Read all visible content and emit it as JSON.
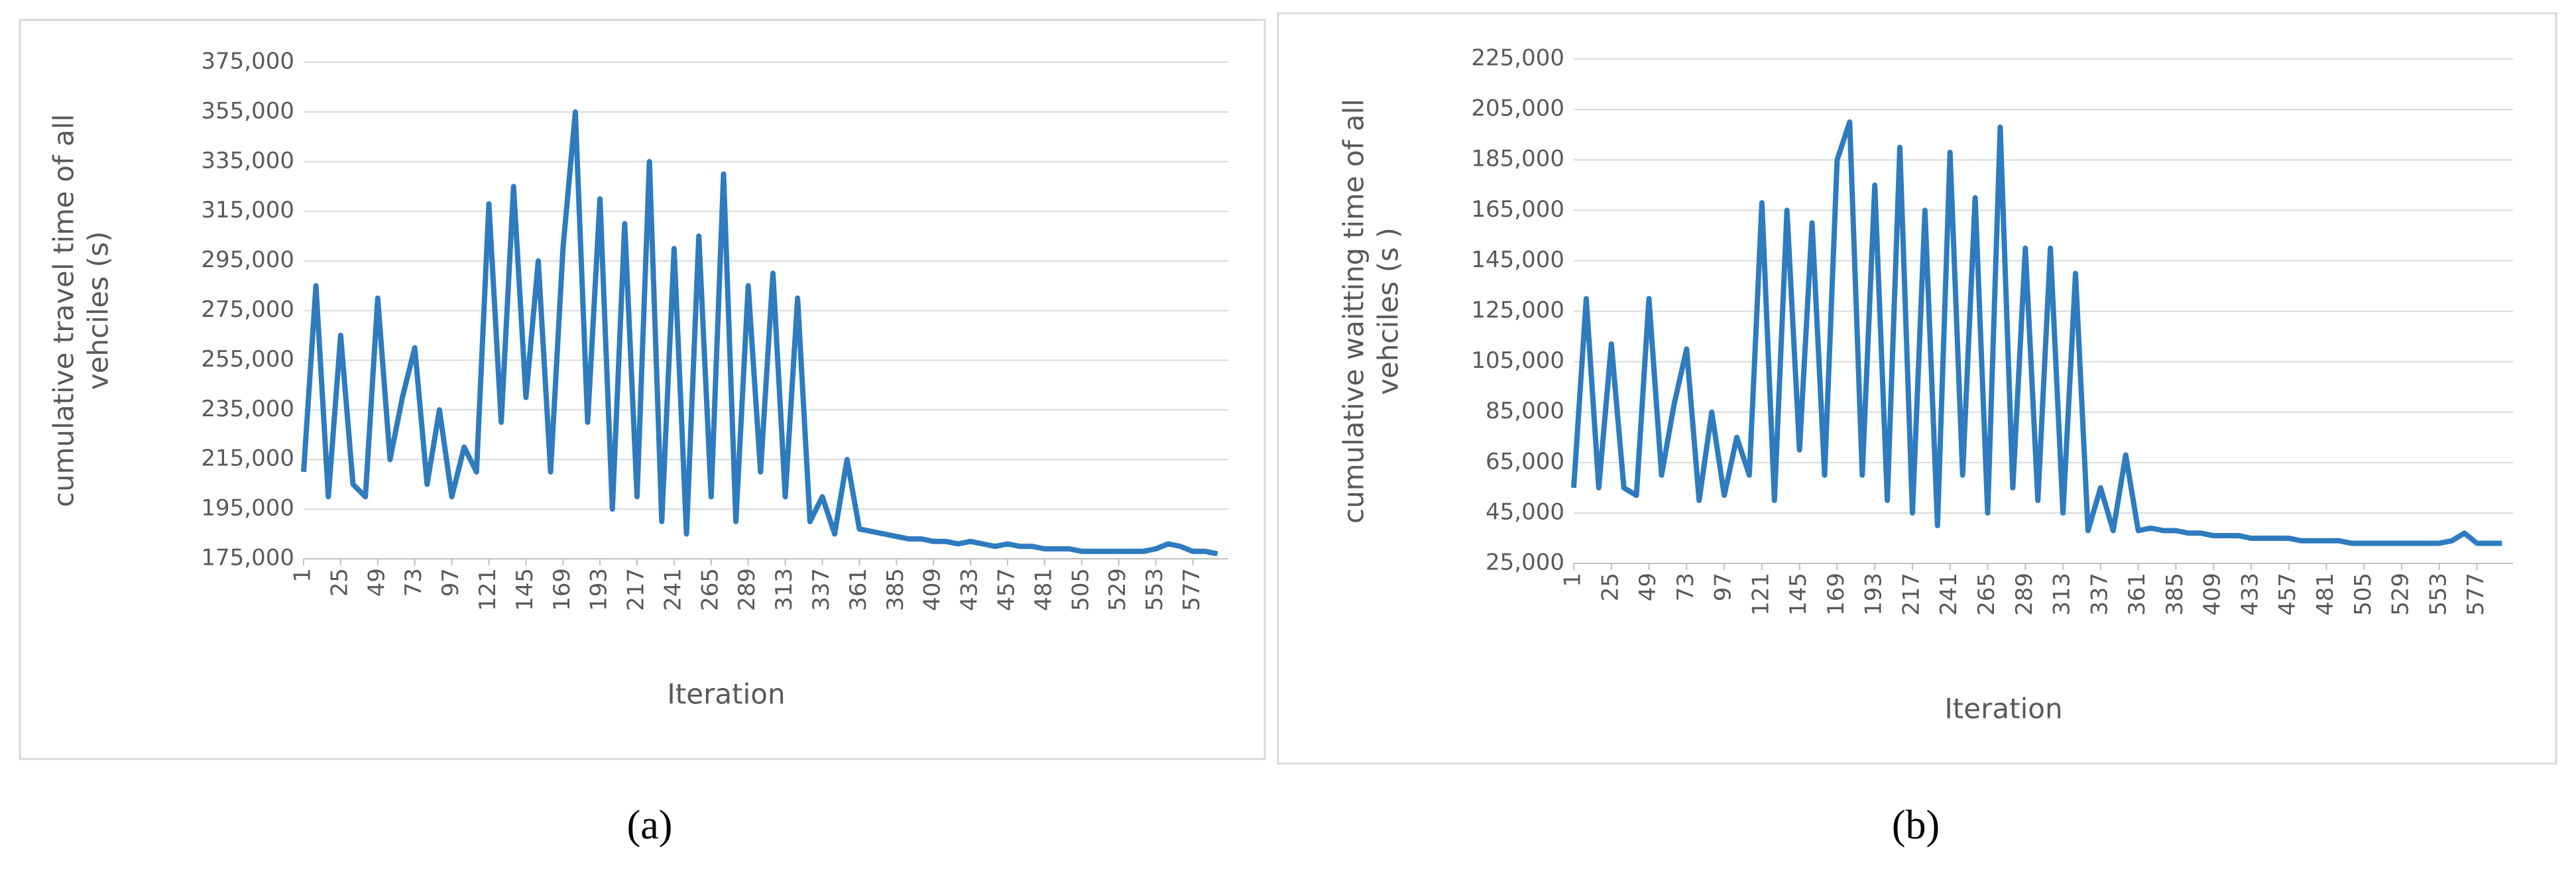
{
  "chart_data": [
    {
      "type": "line",
      "ylabel": [
        "cumulative travel time of all",
        "vehciles (s)"
      ],
      "xlabel": "Iteration",
      "caption": "(a)",
      "grid": true,
      "xlim": [
        1,
        600
      ],
      "xticks": [
        1,
        25,
        49,
        73,
        97,
        121,
        145,
        169,
        193,
        217,
        241,
        265,
        289,
        313,
        337,
        361,
        385,
        409,
        433,
        457,
        481,
        505,
        529,
        553,
        577
      ],
      "ylim": [
        175000,
        375000
      ],
      "yticks": [
        {
          "value": 175000,
          "label": "175,000"
        },
        {
          "value": 195000,
          "label": "195,000"
        },
        {
          "value": 215000,
          "label": "215,000"
        },
        {
          "value": 235000,
          "label": "235,000"
        },
        {
          "value": 255000,
          "label": "255,000"
        },
        {
          "value": 275000,
          "label": "275,000"
        },
        {
          "value": 295000,
          "label": "295,000"
        },
        {
          "value": 315000,
          "label": "315,000"
        },
        {
          "value": 335000,
          "label": "335,000"
        },
        {
          "value": 355000,
          "label": "355,000"
        },
        {
          "value": 375000,
          "label": "375,000"
        }
      ],
      "x": [
        1,
        9,
        17,
        25,
        33,
        41,
        49,
        57,
        65,
        73,
        81,
        89,
        97,
        105,
        113,
        121,
        129,
        137,
        145,
        153,
        161,
        169,
        177,
        185,
        193,
        201,
        209,
        217,
        225,
        233,
        241,
        249,
        257,
        265,
        273,
        281,
        289,
        297,
        305,
        313,
        321,
        329,
        337,
        345,
        353,
        361,
        369,
        377,
        385,
        393,
        401,
        409,
        417,
        425,
        433,
        441,
        449,
        457,
        465,
        473,
        481,
        489,
        497,
        505,
        513,
        521,
        529,
        537,
        545,
        553,
        561,
        569,
        577,
        585,
        593
      ],
      "series": [
        {
          "color": "#2e7bbf",
          "values": [
            210000,
            285000,
            200000,
            265000,
            205000,
            200000,
            280000,
            215000,
            240000,
            260000,
            205000,
            235000,
            200000,
            220000,
            210000,
            318000,
            230000,
            325000,
            240000,
            295000,
            210000,
            300000,
            355000,
            230000,
            320000,
            195000,
            310000,
            200000,
            335000,
            190000,
            300000,
            185000,
            305000,
            200000,
            330000,
            190000,
            285000,
            210000,
            290000,
            200000,
            280000,
            190000,
            200000,
            185000,
            215000,
            187000,
            186000,
            185000,
            184000,
            183000,
            183000,
            182000,
            182000,
            181000,
            182000,
            181000,
            180000,
            181000,
            180000,
            180000,
            179000,
            179000,
            179000,
            178000,
            178000,
            178000,
            178000,
            178000,
            178000,
            179000,
            181000,
            180000,
            178000,
            178000,
            177000
          ]
        }
      ]
    },
    {
      "type": "line",
      "ylabel": [
        "cumulative waitting time of all",
        "vehciles (s )"
      ],
      "xlabel": "Iteration",
      "caption": "(b)",
      "grid": true,
      "xlim": [
        1,
        600
      ],
      "xticks": [
        1,
        25,
        49,
        73,
        97,
        121,
        145,
        169,
        193,
        217,
        241,
        265,
        289,
        313,
        337,
        361,
        385,
        409,
        433,
        457,
        481,
        505,
        529,
        553,
        577
      ],
      "ylim": [
        25000,
        225000
      ],
      "yticks": [
        {
          "value": 25000,
          "label": "25,000"
        },
        {
          "value": 45000,
          "label": "45,000"
        },
        {
          "value": 65000,
          "label": "65,000"
        },
        {
          "value": 85000,
          "label": "85,000"
        },
        {
          "value": 105000,
          "label": "105,000"
        },
        {
          "value": 125000,
          "label": "125,000"
        },
        {
          "value": 145000,
          "label": "145,000"
        },
        {
          "value": 165000,
          "label": "165,000"
        },
        {
          "value": 185000,
          "label": "185,000"
        },
        {
          "value": 205000,
          "label": "205,000"
        },
        {
          "value": 225000,
          "label": "225,000"
        }
      ],
      "x": [
        1,
        9,
        17,
        25,
        33,
        41,
        49,
        57,
        65,
        73,
        81,
        89,
        97,
        105,
        113,
        121,
        129,
        137,
        145,
        153,
        161,
        169,
        177,
        185,
        193,
        201,
        209,
        217,
        225,
        233,
        241,
        249,
        257,
        265,
        273,
        281,
        289,
        297,
        305,
        313,
        321,
        329,
        337,
        345,
        353,
        361,
        369,
        377,
        385,
        393,
        401,
        409,
        417,
        425,
        433,
        441,
        449,
        457,
        465,
        473,
        481,
        489,
        497,
        505,
        513,
        521,
        529,
        537,
        545,
        553,
        561,
        569,
        577,
        585,
        593
      ],
      "series": [
        {
          "color": "#2e7bbf",
          "values": [
            55000,
            130000,
            55000,
            112000,
            55000,
            52000,
            130000,
            60000,
            88000,
            110000,
            50000,
            85000,
            52000,
            75000,
            60000,
            168000,
            50000,
            165000,
            70000,
            160000,
            60000,
            185000,
            200000,
            60000,
            175000,
            50000,
            190000,
            45000,
            165000,
            40000,
            188000,
            60000,
            170000,
            45000,
            198000,
            55000,
            150000,
            50000,
            150000,
            45000,
            140000,
            38000,
            55000,
            38000,
            68000,
            38000,
            39000,
            38000,
            38000,
            37000,
            37000,
            36000,
            36000,
            36000,
            35000,
            35000,
            35000,
            35000,
            34000,
            34000,
            34000,
            34000,
            33000,
            33000,
            33000,
            33000,
            33000,
            33000,
            33000,
            33000,
            34000,
            37000,
            33000,
            33000,
            33000
          ]
        }
      ]
    }
  ]
}
